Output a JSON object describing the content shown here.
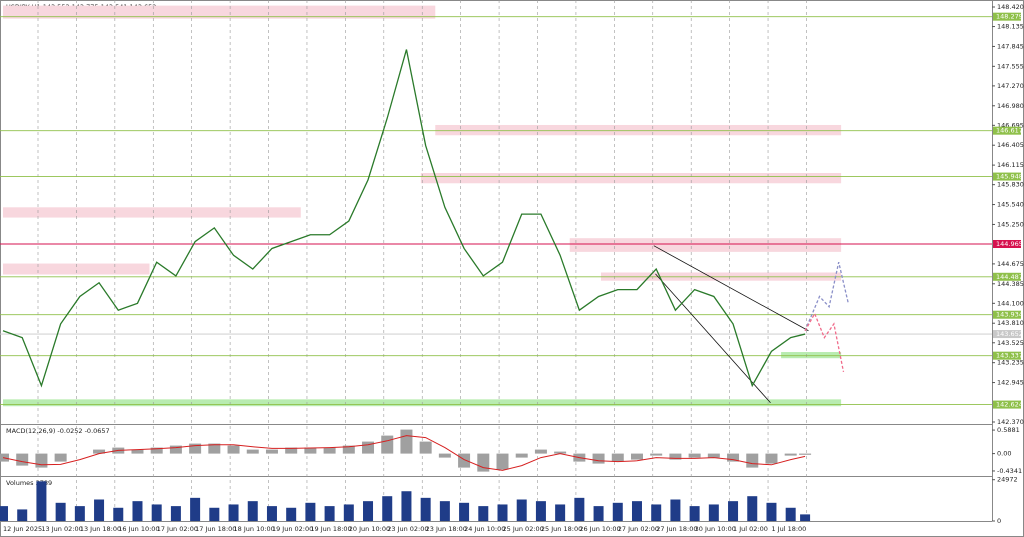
{
  "chart_data": [
    {
      "type": "line",
      "title": "USDJPY,H1  143.553 143.775 143.541 143.652",
      "xlim": [
        0,
        411
      ],
      "xticks": [
        {
          "value": 0,
          "label": "12 Jun 2025"
        },
        {
          "value": 16,
          "label": "13 Jun 02:00"
        },
        {
          "value": 32,
          "label": "13 Jun 18:00"
        },
        {
          "value": 48,
          "label": "16 Jun 10:00"
        },
        {
          "value": 64,
          "label": "17 Jun 02:00"
        },
        {
          "value": 80,
          "label": "17 Jun 18:00"
        },
        {
          "value": 96,
          "label": "18 Jun 10:00"
        },
        {
          "value": 112,
          "label": "19 Jun 02:00"
        },
        {
          "value": 128,
          "label": "19 Jun 18:00"
        },
        {
          "value": 144,
          "label": "20 Jun 10:00"
        },
        {
          "value": 160,
          "label": "23 Jun 02:00"
        },
        {
          "value": 176,
          "label": "23 Jun 18:00"
        },
        {
          "value": 192,
          "label": "24 Jun 10:00"
        },
        {
          "value": 208,
          "label": "25 Jun 02:00"
        },
        {
          "value": 224,
          "label": "25 Jun 18:00"
        },
        {
          "value": 240,
          "label": "26 Jun 10:00"
        },
        {
          "value": 256,
          "label": "27 Jun 02:00"
        },
        {
          "value": 272,
          "label": "27 Jun 18:00"
        },
        {
          "value": 288,
          "label": "30 Jun 10:00"
        },
        {
          "value": 304,
          "label": "1 Jul 02:00"
        },
        {
          "value": 320,
          "label": "1 Jul 18:00"
        }
      ],
      "ylim": [
        142.37,
        148.42
      ],
      "yticks": [
        {
          "value": 148.42,
          "label": "148.420"
        },
        148.135,
        147.845,
        147.555,
        {
          "value": 147.27,
          "label": "147.270"
        },
        {
          "value": 146.98,
          "label": "146.980"
        },
        146.695,
        146.405,
        146.115,
        {
          "value": 145.83,
          "label": "145.830"
        },
        {
          "value": 145.54,
          "label": "145.540"
        },
        {
          "value": 145.25,
          "label": "145.250"
        },
        144.675,
        144.385,
        {
          "value": 144.1,
          "label": "144.100"
        },
        {
          "value": 143.81,
          "label": "143.810"
        },
        143.525,
        143.235,
        142.945,
        {
          "value": 142.37,
          "label": "142.370"
        }
      ],
      "grid": true,
      "series": [
        {
          "color": "#2a7a2a",
          "x": [
            0,
            8,
            16,
            24,
            32,
            40,
            48,
            56,
            64,
            72,
            80,
            88,
            96,
            104,
            112,
            120,
            128,
            136,
            144,
            152,
            160,
            168,
            176,
            184,
            192,
            200,
            208,
            216,
            224,
            232,
            240,
            248,
            256,
            264,
            272,
            280,
            288,
            296,
            304,
            312,
            320,
            328,
            334
          ],
          "values": [
            143.7,
            143.6,
            142.9,
            143.8,
            144.2,
            144.4,
            144.0,
            144.1,
            144.7,
            144.5,
            145.0,
            145.2,
            144.8,
            144.6,
            144.9,
            145.0,
            145.1,
            145.1,
            145.3,
            145.9,
            146.8,
            147.8,
            146.4,
            145.5,
            144.9,
            144.5,
            144.7,
            145.4,
            145.4,
            144.8,
            144.0,
            144.2,
            144.3,
            144.3,
            144.6,
            144.0,
            144.3,
            144.2,
            143.8,
            142.9,
            143.4,
            143.6,
            143.652
          ]
        },
        {
          "color": "#8a8fc8",
          "x": [
            334,
            340,
            344,
            348,
            352
          ],
          "values": [
            143.7,
            144.2,
            144.05,
            144.7,
            144.1
          ]
        },
        {
          "color": "#f06b8a",
          "x": [
            334,
            338,
            342,
            346,
            350
          ],
          "values": [
            143.7,
            143.95,
            143.6,
            143.8,
            143.1
          ]
        }
      ],
      "levels": [
        {
          "value": 148.279,
          "color": "#8fc04a"
        },
        {
          "value": 146.617,
          "color": "#8fc04a"
        },
        {
          "value": 145.948,
          "color": "#8fc04a"
        },
        {
          "value": 144.965,
          "color": "#d6124f"
        },
        {
          "value": 144.487,
          "color": "#8fc04a"
        },
        {
          "value": 143.934,
          "color": "#8fc04a"
        },
        {
          "value": 143.652,
          "color": "#c8c8c8"
        },
        {
          "value": 143.337,
          "color": "#8fc04a"
        },
        {
          "value": 142.624,
          "color": "#8fc04a"
        }
      ],
      "zones": [
        {
          "x": [
            0,
            180
          ],
          "y": [
            148.25,
            148.44
          ],
          "color": "#f8d7de"
        },
        {
          "x": [
            180,
            349
          ],
          "y": [
            146.55,
            146.7
          ],
          "color": "#f8d7de"
        },
        {
          "x": [
            174,
            349
          ],
          "y": [
            145.85,
            146.0
          ],
          "color": "#f8d7de"
        },
        {
          "x": [
            0,
            124
          ],
          "y": [
            145.35,
            145.5
          ],
          "color": "#f8d7de"
        },
        {
          "x": [
            236,
            349
          ],
          "y": [
            144.85,
            145.05
          ],
          "color": "#f8d7de"
        },
        {
          "x": [
            0,
            61
          ],
          "y": [
            144.52,
            144.68
          ],
          "color": "#f8d7de"
        },
        {
          "x": [
            249,
            349
          ],
          "y": [
            144.43,
            144.55
          ],
          "color": "#f8d7de"
        },
        {
          "x": [
            324,
            349
          ],
          "y": [
            143.3,
            143.39
          ],
          "color": "#b8ecb0"
        },
        {
          "x": [
            0,
            349
          ],
          "y": [
            142.6,
            142.7
          ],
          "color": "#b8ecb0"
        }
      ],
      "trendlines": [
        {
          "x": [
            271,
            335.4
          ],
          "y": [
            144.94,
            143.7
          ]
        },
        {
          "x": [
            271.7,
            319.6
          ],
          "y": [
            144.53,
            142.65
          ]
        }
      ]
    },
    {
      "type": "macd",
      "title": "MACD(12,26,9) -0.0252 -0.0657",
      "xlim": [
        0,
        411
      ],
      "ylim": [
        -0.56,
        0.69
      ],
      "yticks": [
        0.5881,
        {
          "value": 0,
          "label": "0.00"
        },
        -0.4341
      ],
      "x": [
        0,
        8,
        16,
        24,
        32,
        40,
        48,
        56,
        64,
        72,
        80,
        88,
        96,
        104,
        112,
        120,
        128,
        136,
        144,
        152,
        160,
        168,
        176,
        184,
        192,
        200,
        208,
        216,
        224,
        232,
        240,
        248,
        256,
        264,
        272,
        280,
        288,
        296,
        304,
        312,
        320,
        328,
        334
      ],
      "values": [
        -0.2,
        -0.3,
        -0.35,
        -0.2,
        0,
        0.1,
        0.15,
        0.1,
        0.15,
        0.2,
        0.25,
        0.25,
        0.2,
        0.1,
        0.1,
        0.15,
        0.15,
        0.15,
        0.2,
        0.3,
        0.45,
        0.6,
        0.3,
        -0.1,
        -0.35,
        -0.45,
        -0.4,
        -0.1,
        0.1,
        0.05,
        -0.2,
        -0.25,
        -0.2,
        -0.15,
        -0.05,
        -0.15,
        -0.1,
        -0.1,
        -0.2,
        -0.35,
        -0.25,
        -0.05,
        -0.03
      ],
      "signal": [
        -0.1,
        -0.2,
        -0.28,
        -0.27,
        -0.15,
        0,
        0.08,
        0.1,
        0.12,
        0.15,
        0.2,
        0.22,
        0.22,
        0.17,
        0.13,
        0.13,
        0.14,
        0.15,
        0.17,
        0.22,
        0.32,
        0.45,
        0.4,
        0.15,
        -0.15,
        -0.35,
        -0.42,
        -0.3,
        -0.1,
        0,
        -0.1,
        -0.18,
        -0.2,
        -0.18,
        -0.1,
        -0.12,
        -0.12,
        -0.1,
        -0.15,
        -0.25,
        -0.28,
        -0.15,
        -0.07
      ],
      "color": "#a0a0a0",
      "signal_color": "#d62020"
    },
    {
      "type": "volume",
      "title": "Volumes 3789",
      "xlim": [
        0,
        411
      ],
      "ylim": [
        0,
        26000
      ],
      "yticks": [
        24972,
        0
      ],
      "x": [
        0,
        8,
        16,
        24,
        32,
        40,
        48,
        56,
        64,
        72,
        80,
        88,
        96,
        104,
        112,
        120,
        128,
        136,
        144,
        152,
        160,
        168,
        176,
        184,
        192,
        200,
        208,
        216,
        224,
        232,
        240,
        248,
        256,
        264,
        272,
        280,
        288,
        296,
        304,
        312,
        320,
        328,
        334
      ],
      "values": [
        9000,
        7000,
        24000,
        11000,
        9000,
        13000,
        8000,
        12000,
        10000,
        9000,
        14000,
        8000,
        10000,
        12000,
        9000,
        8000,
        11000,
        9000,
        10000,
        12000,
        15000,
        18000,
        14000,
        12000,
        11000,
        9000,
        10000,
        13000,
        12000,
        10000,
        14000,
        9000,
        11000,
        12000,
        10000,
        13000,
        9000,
        10000,
        12000,
        15000,
        11000,
        8000,
        4000
      ],
      "color": "#1f3c88"
    }
  ]
}
